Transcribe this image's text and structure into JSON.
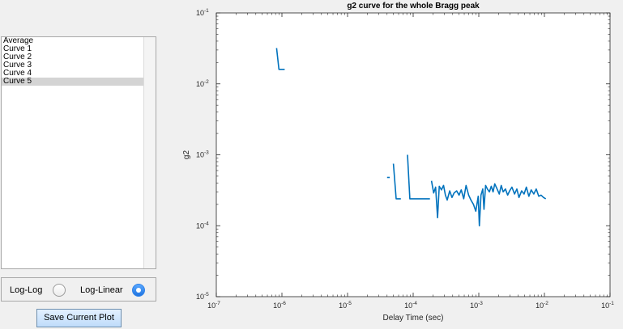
{
  "sidebar": {
    "items": [
      {
        "label": "Average",
        "selected": false
      },
      {
        "label": "Curve 1",
        "selected": false
      },
      {
        "label": "Curve 2",
        "selected": false
      },
      {
        "label": "Curve 3",
        "selected": false
      },
      {
        "label": "Curve 4",
        "selected": false
      },
      {
        "label": "Curve 5",
        "selected": true
      }
    ]
  },
  "mode": {
    "loglog_label": "Log-Log",
    "loglinear_label": "Log-Linear",
    "selected": "Log-Linear"
  },
  "save_button_label": "Save Current Plot",
  "chart_data": {
    "type": "line",
    "title": "g2 curve for the whole Bragg peak",
    "xlabel": "Delay Time (sec)",
    "ylabel": "g2",
    "xscale": "log",
    "yscale": "log",
    "xlim": [
      1e-07,
      0.1
    ],
    "ylim": [
      1e-05,
      0.1
    ],
    "x_ticks": [
      1e-07,
      1e-06,
      1e-05,
      0.0001,
      0.001,
      0.01,
      0.1
    ],
    "y_ticks": [
      1e-05,
      0.0001,
      0.001,
      0.01,
      0.1
    ],
    "x_tick_labels": [
      "10-7",
      "10-6",
      "10-5",
      "10-4",
      "10-3",
      "10-2",
      "10-1"
    ],
    "y_tick_labels": [
      "10-5",
      "10-4",
      "10-3",
      "10-2",
      "10-1"
    ],
    "grid": false,
    "line_color": "#0072bd",
    "series": [
      {
        "segments": [
          [
            [
              8.3e-07,
              0.032
            ],
            [
              9e-07,
              0.016
            ],
            [
              1.1e-06,
              0.016
            ]
          ],
          [
            [
              4e-05,
              0.00048
            ],
            [
              4.4e-05,
              0.00048
            ]
          ],
          [
            [
              5e-05,
              0.00075
            ],
            [
              5.5e-05,
              0.00024
            ],
            [
              6.5e-05,
              0.00024
            ]
          ],
          [
            [
              8.2e-05,
              0.001
            ],
            [
              8.9e-05,
              0.00024
            ],
            [
              0.00018,
              0.00024
            ]
          ],
          [
            [
              0.00019,
              0.00043
            ],
            [
              0.000205,
              0.00029
            ],
            [
              0.00022,
              0.00035
            ],
            [
              0.000235,
              0.00013
            ],
            [
              0.00025,
              0.00036
            ],
            [
              0.00027,
              0.00032
            ],
            [
              0.00029,
              0.00037
            ],
            [
              0.00031,
              0.00027
            ],
            [
              0.00033,
              0.00023
            ],
            [
              0.00036,
              0.00031
            ],
            [
              0.00039,
              0.00025
            ],
            [
              0.00042,
              0.00029
            ],
            [
              0.00046,
              0.00031
            ],
            [
              0.0005,
              0.00027
            ],
            [
              0.00054,
              0.00032
            ],
            [
              0.00059,
              0.00024
            ],
            [
              0.00064,
              0.00037
            ],
            [
              0.0007,
              0.00027
            ],
            [
              0.00076,
              0.00023
            ],
            [
              0.00083,
              0.0002
            ],
            [
              0.0009,
              0.00016
            ],
            [
              0.00098,
              0.00026
            ],
            [
              0.00102,
              0.0001
            ],
            [
              0.00108,
              0.00027
            ],
            [
              0.00115,
              0.00033
            ],
            [
              0.0012,
              0.00017
            ],
            [
              0.00127,
              0.00037
            ],
            [
              0.00135,
              0.00033
            ],
            [
              0.00145,
              0.0003
            ],
            [
              0.00155,
              0.00036
            ],
            [
              0.00165,
              0.0003
            ],
            [
              0.00175,
              0.00039
            ],
            [
              0.0019,
              0.00033
            ],
            [
              0.00205,
              0.00028
            ],
            [
              0.0022,
              0.00037
            ],
            [
              0.00235,
              0.0003
            ],
            [
              0.00255,
              0.00033
            ],
            [
              0.00275,
              0.00027
            ],
            [
              0.00295,
              0.00031
            ],
            [
              0.0032,
              0.00035
            ],
            [
              0.0035,
              0.00028
            ],
            [
              0.0038,
              0.00033
            ],
            [
              0.0041,
              0.00025
            ],
            [
              0.0045,
              0.00031
            ],
            [
              0.0049,
              0.00028
            ],
            [
              0.0053,
              0.00035
            ],
            [
              0.0058,
              0.00026
            ],
            [
              0.0063,
              0.00032
            ],
            [
              0.0069,
              0.00028
            ],
            [
              0.0075,
              0.00033
            ],
            [
              0.0082,
              0.00026
            ],
            [
              0.0089,
              0.00027
            ],
            [
              0.0097,
              0.00025
            ],
            [
              0.0105,
              0.00024
            ]
          ]
        ]
      }
    ]
  }
}
